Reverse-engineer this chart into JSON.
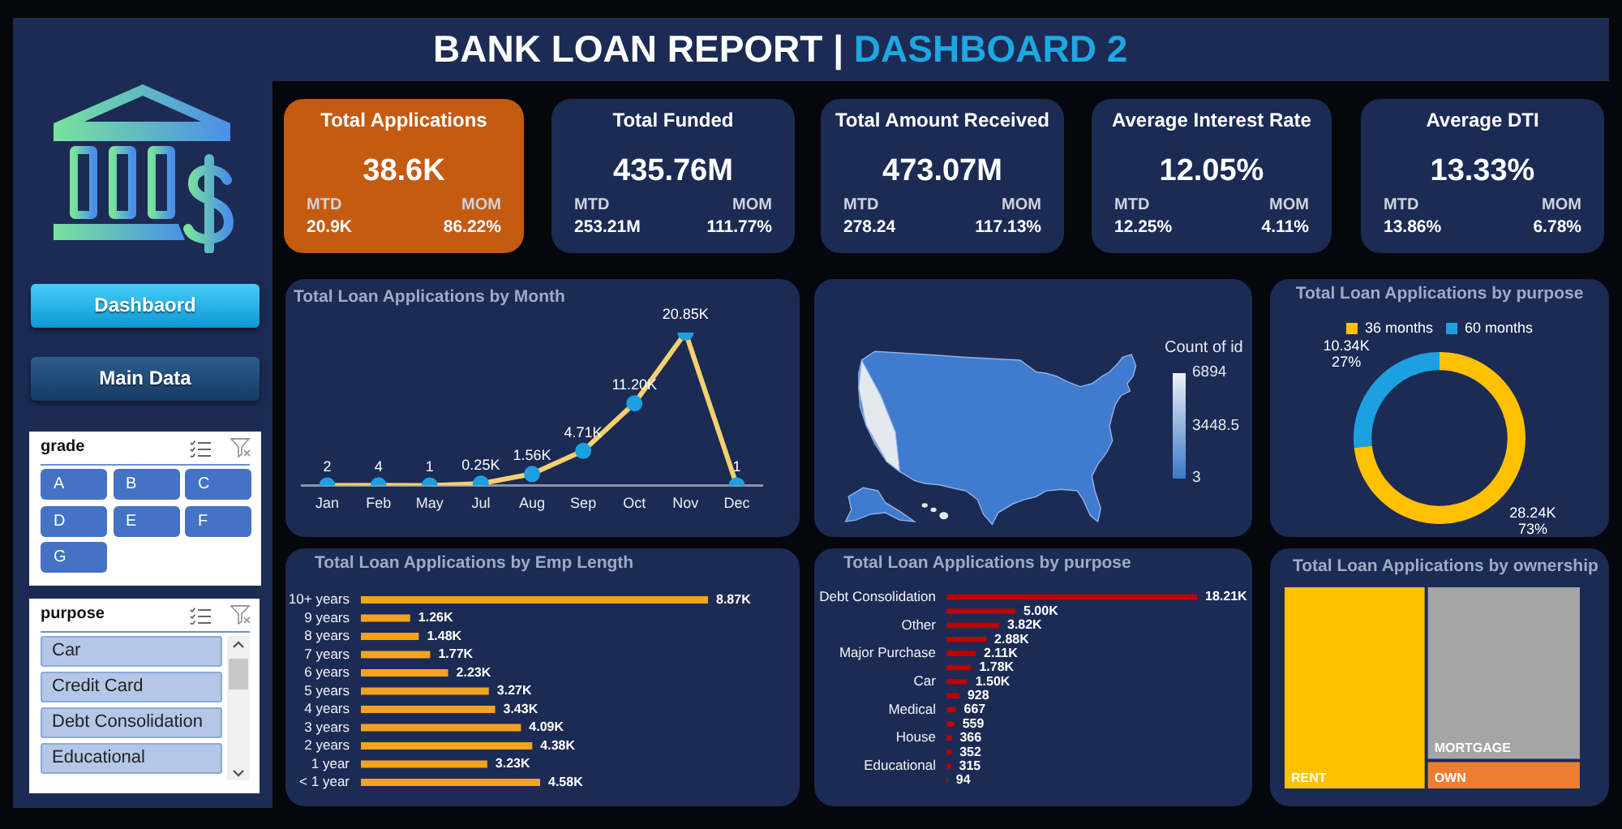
{
  "chart_data": [
    {
      "type": "other",
      "title": "BANK LOAN REPORT | DASHBOARD 2"
    },
    {
      "type": "other",
      "title": "Total Applications",
      "annotations": [
        "38.6K",
        "MTD",
        "20.9K",
        "MOM",
        "86.22%"
      ]
    },
    {
      "type": "other",
      "title": "Total Funded",
      "annotations": [
        "435.76M",
        "MTD",
        "253.21M",
        "MOM",
        "111.77%"
      ]
    },
    {
      "type": "other",
      "title": "Total Amount Received",
      "annotations": [
        "473.07M",
        "MTD",
        "278.24",
        "MOM",
        "117.13%"
      ]
    },
    {
      "type": "other",
      "title": "Average Interest Rate",
      "annotations": [
        "12.05%",
        "MTD",
        "12.25%",
        "MOM",
        "4.11%"
      ]
    },
    {
      "type": "other",
      "title": "Average DTI",
      "annotations": [
        "13.33%",
        "MTD",
        "13.86%",
        "MOM",
        "6.78%"
      ]
    },
    {
      "type": "other",
      "annotations": [
        "Dashbaord",
        "Main Data"
      ]
    },
    {
      "type": "other",
      "title": "grade",
      "annotations": [
        "A",
        "B",
        "C",
        "D",
        "E",
        "F",
        "G"
      ]
    },
    {
      "type": "other",
      "title": "purpose",
      "annotations": [
        "Car",
        "Credit Card",
        "Debt Consolidation",
        "Educational"
      ]
    },
    {
      "type": "line",
      "title": "Total Loan Applications by Month",
      "categories": [
        "Jan",
        "Feb",
        "May",
        "Jul",
        "Aug",
        "Sep",
        "Oct",
        "Nov",
        "Dec"
      ],
      "series": [
        {
          "color": "#f4d06f",
          "colors": [
            "#1ba1e2",
            "#1ba1e2",
            "#1ba1e2",
            "#1ba1e2",
            "#1ba1e2",
            "#1ba1e2",
            "#1ba1e2",
            "#1ba1e2",
            "#1ba1e2"
          ],
          "values": [
            2,
            4,
            1,
            250,
            1560,
            4710,
            11200,
            20850,
            1
          ],
          "value_labels": [
            "2",
            "4",
            "1",
            "0.25K",
            "1.56K",
            "4.71K",
            "11.20K",
            "20.85K",
            "1"
          ]
        }
      ],
      "marker": "circle",
      "tick_labels": "x"
    },
    {
      "type": "other",
      "clabel": "Count of id",
      "annotations": [
        "6894",
        "3448.5",
        "3"
      ],
      "colors": [
        "#3a78c8",
        "#eef0f5"
      ]
    },
    {
      "type": "donut",
      "title": "Total Loan Applications by purpose",
      "categories": [
        "36 months",
        "60 months"
      ],
      "values": [
        28240,
        10340
      ],
      "colors": [
        "#ffc000",
        "#1ba1e2"
      ],
      "value_labels": [
        "28.24K\n73%",
        "10.34K\n27%"
      ],
      "legend": "top"
    },
    {
      "type": "bar",
      "orientation": "horizontal",
      "title": "Total Loan Applications by Emp Length",
      "categories": [
        "10+ years",
        "9 years",
        "8 years",
        "7 years",
        "6 years",
        "5 years",
        "4 years",
        "3 years",
        "2 years",
        "1 year",
        "< 1 year"
      ],
      "values": [
        8870,
        1260,
        1480,
        1770,
        2230,
        3270,
        3430,
        4090,
        4380,
        3230,
        4580
      ],
      "value_labels": [
        "8.87K",
        "1.26K",
        "1.48K",
        "1.77K",
        "2.23K",
        "3.27K",
        "3.43K",
        "4.09K",
        "4.38K",
        "3.23K",
        "4.58K"
      ],
      "color": "#f5a31d",
      "tick_labels": "y"
    },
    {
      "type": "bar",
      "orientation": "horizontal",
      "title": "Total Loan Applications by purpose",
      "categories": [
        "Debt Consolidation",
        null,
        "Other",
        null,
        "Major Purchase",
        null,
        "Car",
        null,
        "Medical",
        null,
        "House",
        null,
        "Educational",
        null
      ],
      "values": [
        18210,
        5000,
        3820,
        2880,
        2110,
        1780,
        1500,
        928,
        667,
        559,
        366,
        352,
        315,
        94
      ],
      "value_labels": [
        "18.21K",
        "5.00K",
        "3.82K",
        "2.88K",
        "2.11K",
        "1.78K",
        "1.50K",
        "928",
        "667",
        "559",
        "366",
        "352",
        "315",
        "94"
      ],
      "color": "#c00000",
      "tick_labels": "y"
    },
    {
      "type": "other",
      "title": "Total Loan Applications by ownership",
      "categories": [
        "RENT",
        "MORTGAGE",
        "OWN"
      ],
      "colors": [
        "#ffc000",
        "#a5a5a5",
        "#ed7d31"
      ]
    }
  ]
}
